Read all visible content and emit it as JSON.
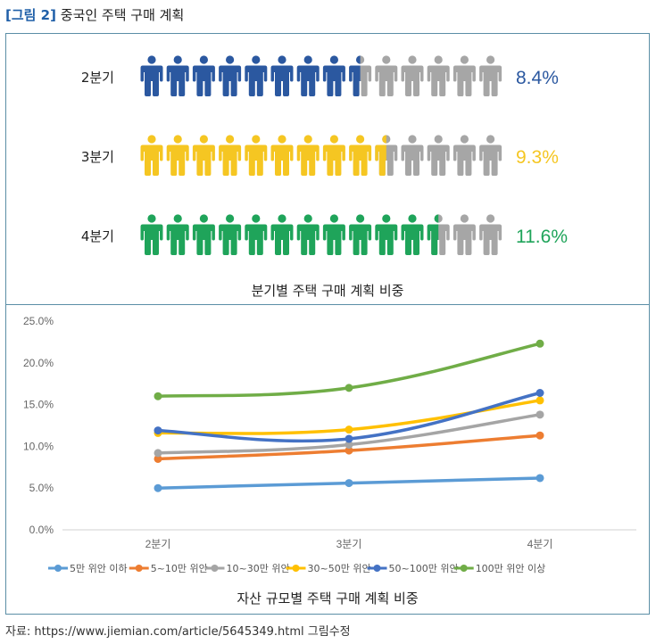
{
  "figure": {
    "tag": "[그림 2]",
    "title": "중국인 주택 구매 계획",
    "source": "자료: https://www.jiemian.com/article/5645349.html 그림수정"
  },
  "colors": {
    "grey": "#a6a6a6",
    "q2": "#2b58a0",
    "q3": "#f5c622",
    "q4": "#1fa45a",
    "frame": "#5b8ea6"
  },
  "icons": {
    "person": "person-icon"
  },
  "chart_data": [
    {
      "type": "pictograph",
      "caption": "분기별 주택 구매 계획 비중",
      "icons_per_row": 14,
      "rows": [
        {
          "label": "2분기",
          "value": 8.4,
          "value_label": "8.4%",
          "color": "#2b58a0",
          "filled_icons": 8.5
        },
        {
          "label": "3분기",
          "value": 9.3,
          "value_label": "9.3%",
          "color": "#f5c622",
          "filled_icons": 9.5
        },
        {
          "label": "4분기",
          "value": 11.6,
          "value_label": "11.6%",
          "color": "#1fa45a",
          "filled_icons": 11.5
        }
      ]
    },
    {
      "type": "line",
      "caption": "자산 규모별 주택 구매 계획 비중",
      "categories": [
        "2분기",
        "3분기",
        "4분기"
      ],
      "ylim": [
        0,
        25
      ],
      "yticks": [
        "0.0%",
        "5.0%",
        "10.0%",
        "15.0%",
        "20.0%",
        "25.0%"
      ],
      "ytick_values": [
        0,
        5,
        10,
        15,
        20,
        25
      ],
      "grid": false,
      "legend_position": "bottom",
      "series": [
        {
          "name": "5만 위안 이하",
          "color": "#5b9bd5",
          "values": [
            5.0,
            5.6,
            6.2
          ]
        },
        {
          "name": "5~10만 위안",
          "color": "#ed7d31",
          "values": [
            8.5,
            9.5,
            11.3
          ]
        },
        {
          "name": "10~30만 위안",
          "color": "#a5a5a5",
          "values": [
            9.2,
            10.2,
            13.8
          ]
        },
        {
          "name": "30~50만 위안",
          "color": "#ffc000",
          "values": [
            11.6,
            12.0,
            15.5
          ]
        },
        {
          "name": "50~100만 위안",
          "color": "#4472c4",
          "values": [
            11.9,
            10.9,
            16.4
          ]
        },
        {
          "name": "100만 위안 이상",
          "color": "#70ad47",
          "values": [
            16.0,
            17.0,
            22.3
          ]
        }
      ]
    }
  ]
}
